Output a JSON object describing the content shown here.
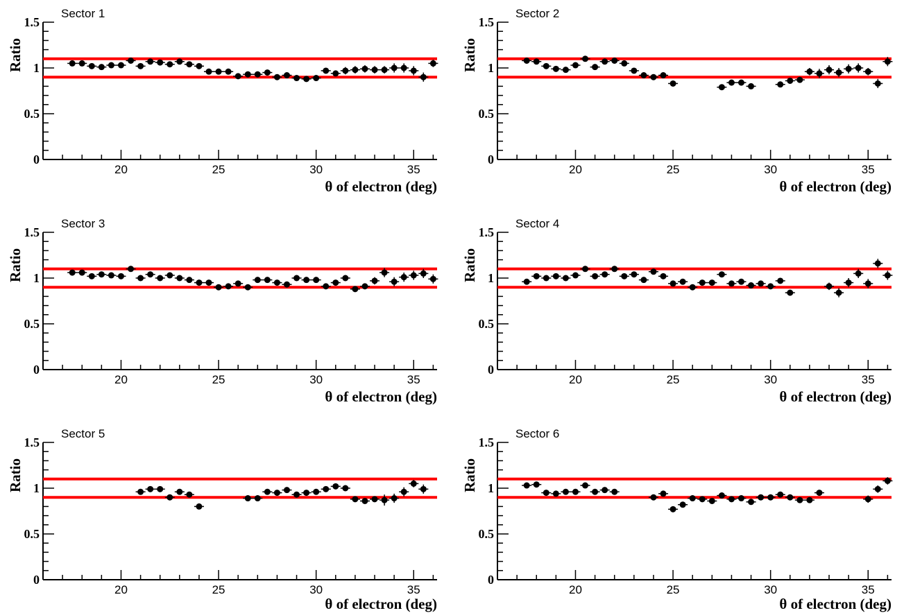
{
  "chart_data": [
    {
      "type": "scatter",
      "title": "Sector 1",
      "xlabel": "θ of electron (deg)",
      "ylabel": "Ratio",
      "xlim": [
        16,
        36.2
      ],
      "ylim": [
        0,
        1.5
      ],
      "xticks": [
        "20",
        "25",
        "30",
        "35"
      ],
      "yticks": [
        "0",
        "0.5",
        "1",
        "1.5"
      ],
      "reference_lines": [
        1.1,
        0.9
      ],
      "x_half_width": 0.25,
      "colors": {
        "points": "#000000",
        "reference": "#ff0000"
      },
      "series": [
        {
          "x": [
            17.5,
            18,
            18.5,
            19,
            19.5,
            20,
            20.5,
            21,
            21.5,
            22,
            22.5,
            23,
            23.5,
            24,
            24.5,
            25,
            25.5,
            26,
            26.5,
            27,
            27.5,
            28,
            28.5,
            29,
            29.5,
            30,
            30.5,
            31,
            31.5,
            32,
            32.5,
            33,
            33.5,
            34,
            34.5,
            35,
            35.5,
            36
          ],
          "y": [
            1.05,
            1.05,
            1.02,
            1.01,
            1.03,
            1.03,
            1.08,
            1.02,
            1.07,
            1.06,
            1.04,
            1.07,
            1.04,
            1.02,
            0.96,
            0.96,
            0.96,
            0.91,
            0.93,
            0.93,
            0.95,
            0.9,
            0.92,
            0.89,
            0.88,
            0.89,
            0.97,
            0.94,
            0.97,
            0.98,
            0.99,
            0.98,
            0.98,
            1.0,
            1.0,
            0.97,
            0.9,
            1.05
          ],
          "err": [
            0.01,
            0.01,
            0.01,
            0.01,
            0.01,
            0.01,
            0.01,
            0.01,
            0.01,
            0.01,
            0.01,
            0.01,
            0.01,
            0.01,
            0.01,
            0.01,
            0.01,
            0.01,
            0.01,
            0.01,
            0.01,
            0.01,
            0.01,
            0.01,
            0.01,
            0.01,
            0.01,
            0.02,
            0.04,
            0.04,
            0.04,
            0.04,
            0.04,
            0.05,
            0.05,
            0.05,
            0.05,
            0.04
          ]
        }
      ]
    },
    {
      "type": "scatter",
      "title": "Sector 2",
      "xlabel": "θ of electron (deg)",
      "ylabel": "Ratio",
      "xlim": [
        16,
        36.2
      ],
      "ylim": [
        0,
        1.5
      ],
      "xticks": [
        "20",
        "25",
        "30",
        "35"
      ],
      "yticks": [
        "0",
        "0.5",
        "1",
        "1.5"
      ],
      "reference_lines": [
        1.1,
        0.9
      ],
      "x_half_width": 0.25,
      "colors": {
        "points": "#000000",
        "reference": "#ff0000"
      },
      "series": [
        {
          "x": [
            17.5,
            18,
            18.5,
            19,
            19.5,
            20,
            20.5,
            21,
            21.5,
            22,
            22.5,
            23,
            23.5,
            24,
            24.5,
            25,
            27.5,
            28,
            28.5,
            29,
            30.5,
            31,
            31.5,
            32,
            32.5,
            33,
            33.5,
            34,
            34.5,
            35,
            35.5,
            36
          ],
          "y": [
            1.08,
            1.07,
            1.02,
            0.99,
            0.98,
            1.03,
            1.1,
            1.01,
            1.07,
            1.08,
            1.05,
            0.97,
            0.92,
            0.9,
            0.92,
            0.83,
            0.79,
            0.84,
            0.84,
            0.8,
            0.82,
            0.86,
            0.87,
            0.96,
            0.94,
            0.98,
            0.95,
            0.99,
            1.0,
            0.96,
            0.83,
            1.07
          ],
          "err": [
            0.01,
            0.01,
            0.01,
            0.01,
            0.01,
            0.01,
            0.01,
            0.01,
            0.01,
            0.01,
            0.01,
            0.01,
            0.01,
            0.01,
            0.01,
            0.01,
            0.01,
            0.01,
            0.01,
            0.01,
            0.01,
            0.01,
            0.01,
            0.04,
            0.05,
            0.05,
            0.05,
            0.05,
            0.05,
            0.04,
            0.05,
            0.05
          ]
        }
      ]
    },
    {
      "type": "scatter",
      "title": "Sector 3",
      "xlabel": "θ of electron (deg)",
      "ylabel": "Ratio",
      "xlim": [
        16,
        36.2
      ],
      "ylim": [
        0,
        1.5
      ],
      "xticks": [
        "20",
        "25",
        "30",
        "35"
      ],
      "yticks": [
        "0",
        "0.5",
        "1",
        "1.5"
      ],
      "reference_lines": [
        1.1,
        0.9
      ],
      "x_half_width": 0.25,
      "colors": {
        "points": "#000000",
        "reference": "#ff0000"
      },
      "series": [
        {
          "x": [
            17.5,
            18,
            18.5,
            19,
            19.5,
            20,
            20.5,
            21,
            21.5,
            22,
            22.5,
            23,
            23.5,
            24,
            24.5,
            25,
            25.5,
            26,
            26.5,
            27,
            27.5,
            28,
            28.5,
            29,
            29.5,
            30,
            30.5,
            31,
            31.5,
            32,
            32.5,
            33,
            33.5,
            34,
            34.5,
            35,
            35.5,
            36
          ],
          "y": [
            1.06,
            1.06,
            1.02,
            1.04,
            1.03,
            1.02,
            1.1,
            1.0,
            1.04,
            1.0,
            1.03,
            1.0,
            0.98,
            0.95,
            0.95,
            0.9,
            0.91,
            0.94,
            0.9,
            0.98,
            0.98,
            0.95,
            0.93,
            1.0,
            0.98,
            0.98,
            0.91,
            0.95,
            1.0,
            0.88,
            0.91,
            0.97,
            1.06,
            0.96,
            1.01,
            1.03,
            1.05,
            0.99
          ],
          "err": [
            0.01,
            0.01,
            0.01,
            0.01,
            0.01,
            0.01,
            0.01,
            0.01,
            0.01,
            0.01,
            0.01,
            0.01,
            0.01,
            0.01,
            0.01,
            0.01,
            0.01,
            0.01,
            0.01,
            0.01,
            0.01,
            0.01,
            0.01,
            0.01,
            0.01,
            0.01,
            0.01,
            0.01,
            0.01,
            0.02,
            0.02,
            0.04,
            0.05,
            0.05,
            0.05,
            0.05,
            0.05,
            0.05
          ]
        }
      ]
    },
    {
      "type": "scatter",
      "title": "Sector 4",
      "xlabel": "θ of electron (deg)",
      "ylabel": "Ratio",
      "xlim": [
        16,
        36.2
      ],
      "ylim": [
        0,
        1.5
      ],
      "xticks": [
        "20",
        "25",
        "30",
        "35"
      ],
      "yticks": [
        "0",
        "0.5",
        "1",
        "1.5"
      ],
      "reference_lines": [
        1.1,
        0.9
      ],
      "x_half_width": 0.25,
      "colors": {
        "points": "#000000",
        "reference": "#ff0000"
      },
      "series": [
        {
          "x": [
            17.5,
            18,
            18.5,
            19,
            19.5,
            20,
            20.5,
            21,
            21.5,
            22,
            22.5,
            23,
            23.5,
            24,
            24.5,
            25,
            25.5,
            26,
            26.5,
            27,
            27.5,
            28,
            28.5,
            29,
            29.5,
            30,
            30.5,
            31,
            33,
            33.5,
            34,
            34.5,
            35,
            35.5,
            36
          ],
          "y": [
            0.96,
            1.02,
            1.0,
            1.02,
            1.0,
            1.03,
            1.1,
            1.02,
            1.04,
            1.1,
            1.02,
            1.04,
            0.98,
            1.07,
            1.02,
            0.94,
            0.96,
            0.9,
            0.95,
            0.95,
            1.04,
            0.94,
            0.96,
            0.92,
            0.94,
            0.91,
            0.97,
            0.84,
            0.91,
            0.84,
            0.95,
            1.05,
            0.94,
            1.16,
            1.03
          ],
          "err": [
            0.01,
            0.01,
            0.01,
            0.01,
            0.01,
            0.01,
            0.01,
            0.01,
            0.01,
            0.01,
            0.01,
            0.01,
            0.01,
            0.01,
            0.01,
            0.01,
            0.01,
            0.01,
            0.01,
            0.01,
            0.01,
            0.01,
            0.01,
            0.01,
            0.01,
            0.01,
            0.01,
            0.01,
            0.04,
            0.05,
            0.05,
            0.05,
            0.05,
            0.05,
            0.05
          ]
        }
      ]
    },
    {
      "type": "scatter",
      "title": "Sector 5",
      "xlabel": "θ of electron (deg)",
      "ylabel": "Ratio",
      "xlim": [
        16,
        36.2
      ],
      "ylim": [
        0,
        1.5
      ],
      "xticks": [
        "20",
        "25",
        "30",
        "35"
      ],
      "yticks": [
        "0",
        "0.5",
        "1",
        "1.5"
      ],
      "reference_lines": [
        1.1,
        0.9
      ],
      "x_half_width": 0.25,
      "colors": {
        "points": "#000000",
        "reference": "#ff0000"
      },
      "series": [
        {
          "x": [
            21,
            21.5,
            22,
            22.5,
            23,
            23.5,
            24,
            26.5,
            27,
            27.5,
            28,
            28.5,
            29,
            29.5,
            30,
            30.5,
            31,
            31.5,
            32,
            32.5,
            33,
            33.5,
            34,
            34.5,
            35,
            35.5
          ],
          "y": [
            0.96,
            0.99,
            0.99,
            0.9,
            0.96,
            0.93,
            0.8,
            0.89,
            0.89,
            0.96,
            0.95,
            0.98,
            0.93,
            0.95,
            0.96,
            0.99,
            1.02,
            1.0,
            0.88,
            0.86,
            0.88,
            0.87,
            0.89,
            0.96,
            1.05,
            0.99
          ],
          "err": [
            0.01,
            0.01,
            0.01,
            0.01,
            0.01,
            0.01,
            0.01,
            0.01,
            0.01,
            0.01,
            0.01,
            0.01,
            0.01,
            0.01,
            0.01,
            0.01,
            0.01,
            0.01,
            0.01,
            0.01,
            0.02,
            0.06,
            0.05,
            0.05,
            0.04,
            0.05
          ]
        }
      ]
    },
    {
      "type": "scatter",
      "title": "Sector 6",
      "xlabel": "θ of electron (deg)",
      "ylabel": "Ratio",
      "xlim": [
        16,
        36.2
      ],
      "ylim": [
        0,
        1.5
      ],
      "xticks": [
        "20",
        "25",
        "30",
        "35"
      ],
      "yticks": [
        "0",
        "0.5",
        "1",
        "1.5"
      ],
      "reference_lines": [
        1.1,
        0.9
      ],
      "x_half_width": 0.25,
      "colors": {
        "points": "#000000",
        "reference": "#ff0000"
      },
      "series": [
        {
          "x": [
            17.5,
            18,
            18.5,
            19,
            19.5,
            20,
            20.5,
            21,
            21.5,
            22,
            24,
            24.5,
            25,
            25.5,
            26,
            26.5,
            27,
            27.5,
            28,
            28.5,
            29,
            29.5,
            30,
            30.5,
            31,
            31.5,
            32,
            32.5,
            35,
            35.5,
            36
          ],
          "y": [
            1.03,
            1.04,
            0.95,
            0.94,
            0.96,
            0.96,
            1.03,
            0.96,
            0.98,
            0.96,
            0.9,
            0.94,
            0.77,
            0.82,
            0.89,
            0.88,
            0.86,
            0.92,
            0.88,
            0.89,
            0.85,
            0.9,
            0.9,
            0.93,
            0.9,
            0.87,
            0.87,
            0.95,
            0.88,
            0.99,
            1.08
          ],
          "err": [
            0.01,
            0.01,
            0.01,
            0.01,
            0.01,
            0.01,
            0.01,
            0.01,
            0.01,
            0.01,
            0.01,
            0.01,
            0.01,
            0.01,
            0.01,
            0.01,
            0.01,
            0.01,
            0.01,
            0.01,
            0.01,
            0.01,
            0.01,
            0.01,
            0.01,
            0.01,
            0.01,
            0.01,
            0.04,
            0.04,
            0.04
          ]
        }
      ]
    }
  ]
}
